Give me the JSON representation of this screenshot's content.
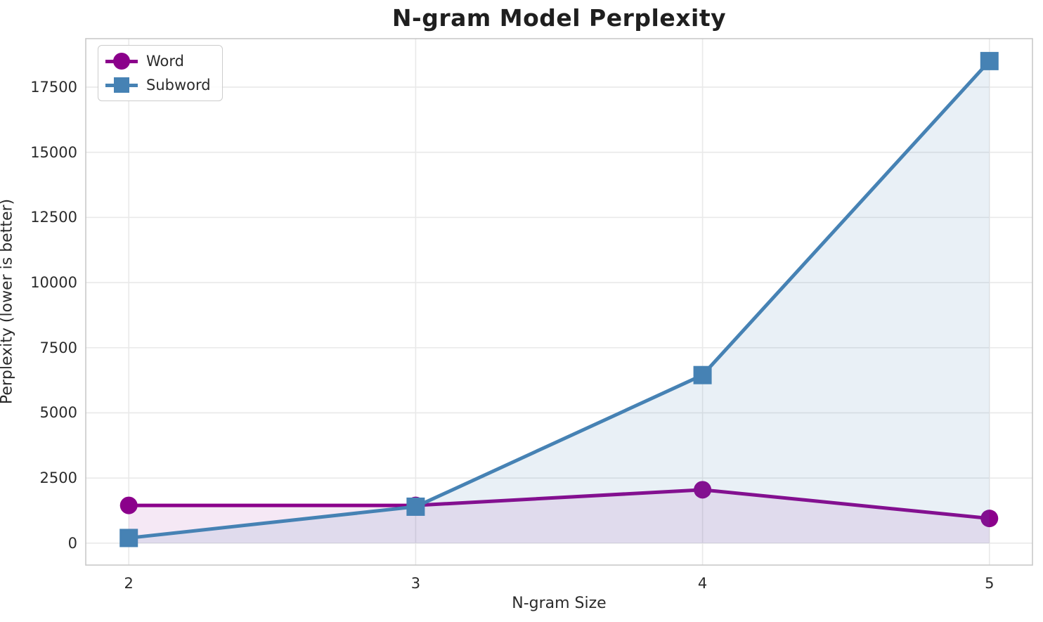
{
  "chart_data": {
    "type": "line",
    "title": "N-gram Model Perplexity",
    "xlabel": "N-gram Size",
    "ylabel": "Perplexity (lower is better)",
    "x": [
      2,
      3,
      4,
      5
    ],
    "series": [
      {
        "name": "Word",
        "values": [
          1450,
          1450,
          2050,
          950
        ],
        "color": "#8B008B",
        "marker": "circle",
        "fill_alpha": 0.09
      },
      {
        "name": "Subword",
        "values": [
          200,
          1400,
          6450,
          18500
        ],
        "color": "#4682B4",
        "marker": "square",
        "fill_alpha": 0.12
      }
    ],
    "xticks": [
      2,
      3,
      4,
      5
    ],
    "yticks": [
      0,
      2500,
      5000,
      7500,
      10000,
      12500,
      15000,
      17500
    ],
    "xlim": [
      1.85,
      5.15
    ],
    "ylim": [
      -840,
      19360
    ],
    "grid": true,
    "legend_position": "upper left",
    "fill_to_baseline": 0,
    "colors": {
      "grid": "#e9e9e9",
      "spine": "#c9c9c9",
      "text": "#2b2b2b",
      "title": "#1f1f1f",
      "background": "#ffffff"
    }
  }
}
